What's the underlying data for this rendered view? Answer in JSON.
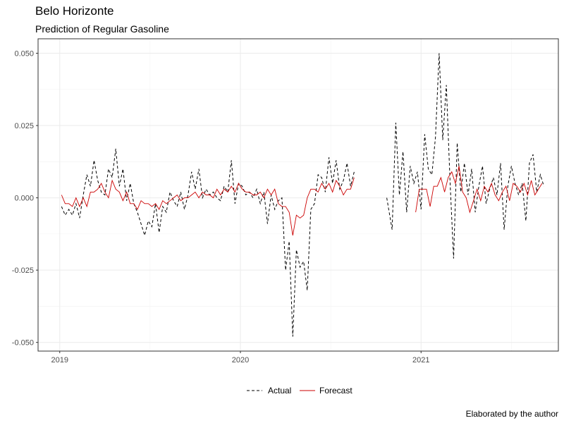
{
  "title": "Belo Horizonte",
  "subtitle": "Prediction of Regular Gasoline",
  "caption": "Elaborated by the author",
  "chart_data": {
    "type": "line",
    "title": "Belo Horizonte",
    "subtitle": "Prediction of Regular Gasoline",
    "xlabel": "",
    "ylabel": "",
    "x_range": [
      "2018-12-01",
      "2021-09-30"
    ],
    "xlim_decimal_year": [
      2018.88,
      2021.76
    ],
    "ylim": [
      -0.053,
      0.055
    ],
    "x_ticks": [
      {
        "value": 2019,
        "label": "2019"
      },
      {
        "value": 2020,
        "label": "2020"
      },
      {
        "value": 2021,
        "label": "2021"
      }
    ],
    "y_ticks": [
      {
        "value": -0.05,
        "label": "-0.050"
      },
      {
        "value": -0.025,
        "label": "-0.025"
      },
      {
        "value": 0.0,
        "label": "0.000"
      },
      {
        "value": 0.025,
        "label": "0.025"
      },
      {
        "value": 0.05,
        "label": "0.050"
      }
    ],
    "grid": true,
    "legend_position": "bottom",
    "series": [
      {
        "name": "Actual",
        "color": "#000000",
        "dash": "dashed",
        "segments": [
          {
            "x": [
              2019.01,
              2019.03,
              2019.05,
              2019.07,
              2019.09,
              2019.11,
              2019.13,
              2019.15,
              2019.17,
              2019.19,
              2019.21,
              2019.23,
              2019.25,
              2019.27,
              2019.29,
              2019.31,
              2019.33,
              2019.35,
              2019.37,
              2019.39,
              2019.41,
              2019.43,
              2019.45,
              2019.47,
              2019.49,
              2019.51,
              2019.53,
              2019.55,
              2019.57,
              2019.59,
              2019.61,
              2019.63,
              2019.65,
              2019.67,
              2019.69,
              2019.71,
              2019.73,
              2019.75,
              2019.77,
              2019.79,
              2019.81,
              2019.83,
              2019.85,
              2019.87,
              2019.89,
              2019.91,
              2019.93,
              2019.95,
              2019.97,
              2019.99,
              2020.01,
              2020.03,
              2020.05,
              2020.07,
              2020.09,
              2020.11,
              2020.13,
              2020.15,
              2020.17,
              2020.19,
              2020.21,
              2020.23,
              2020.25,
              2020.27,
              2020.29,
              2020.31,
              2020.33,
              2020.35,
              2020.37,
              2020.39,
              2020.41,
              2020.43,
              2020.45,
              2020.47,
              2020.49,
              2020.51,
              2020.53,
              2020.55,
              2020.57,
              2020.59,
              2020.61,
              2020.63
            ],
            "y": [
              -0.003,
              -0.006,
              -0.004,
              -0.006,
              -0.002,
              -0.007,
              0.001,
              0.008,
              0.004,
              0.013,
              0.006,
              0.002,
              0.001,
              0.01,
              0.007,
              0.017,
              0.004,
              0.01,
              -0.001,
              0.005,
              -0.002,
              -0.005,
              -0.009,
              -0.013,
              -0.008,
              -0.01,
              -0.002,
              -0.012,
              -0.003,
              -0.005,
              0.002,
              -0.001,
              -0.003,
              0.002,
              -0.004,
              0.001,
              0.009,
              0.003,
              0.01,
              0.0,
              0.003,
              0.001,
              0.002,
              0.0,
              -0.001,
              0.004,
              0.002,
              0.013,
              -0.002,
              0.005,
              0.004,
              0.001,
              0.002,
              0.0,
              0.003,
              -0.002,
              0.002,
              -0.009,
              0.001,
              -0.004,
              -0.001,
              0.0,
              -0.025,
              -0.015,
              -0.048,
              -0.018,
              -0.024,
              -0.022,
              -0.032,
              -0.004,
              -0.002,
              0.008,
              0.007,
              0.002,
              0.014,
              0.005,
              0.013,
              0.003,
              0.006,
              0.012,
              0.004,
              0.009
            ]
          },
          {
            "x": [
              2020.81,
              2020.84,
              2020.86,
              2020.88,
              2020.9,
              2020.92,
              2020.94,
              2020.96,
              2020.98,
              2021.0,
              2021.02,
              2021.04,
              2021.06,
              2021.08,
              2021.1,
              2021.12,
              2021.14,
              2021.16,
              2021.18,
              2021.2,
              2021.22,
              2021.24,
              2021.26,
              2021.28,
              2021.3,
              2021.32,
              2021.34,
              2021.36,
              2021.38,
              2021.4,
              2021.42,
              2021.44,
              2021.46,
              2021.48,
              2021.5,
              2021.52,
              2021.54,
              2021.56,
              2021.58,
              2021.6,
              2021.62,
              2021.64,
              2021.66,
              2021.68
            ],
            "y": [
              0.0,
              -0.011,
              0.026,
              0.001,
              0.016,
              -0.005,
              0.011,
              0.005,
              0.009,
              -0.004,
              0.022,
              0.01,
              0.008,
              0.021,
              0.05,
              0.02,
              0.039,
              0.006,
              -0.021,
              0.019,
              0.002,
              0.012,
              0.001,
              0.01,
              -0.005,
              0.004,
              0.011,
              -0.002,
              0.003,
              0.007,
              0.001,
              0.012,
              -0.011,
              0.004,
              0.011,
              0.005,
              0.001,
              0.005,
              -0.008,
              0.012,
              0.015,
              0.002,
              0.008,
              0.004
            ]
          }
        ]
      },
      {
        "name": "Forecast",
        "color": "#cc0000",
        "dash": "solid",
        "segments": [
          {
            "x": [
              2019.01,
              2019.03,
              2019.05,
              2019.07,
              2019.09,
              2019.11,
              2019.13,
              2019.15,
              2019.17,
              2019.19,
              2019.21,
              2019.23,
              2019.25,
              2019.27,
              2019.29,
              2019.31,
              2019.33,
              2019.35,
              2019.37,
              2019.39,
              2019.41,
              2019.43,
              2019.45,
              2019.47,
              2019.49,
              2019.51,
              2019.53,
              2019.55,
              2019.57,
              2019.59,
              2019.61,
              2019.63,
              2019.65,
              2019.67,
              2019.69,
              2019.71,
              2019.73,
              2019.75,
              2019.77,
              2019.79,
              2019.81,
              2019.83,
              2019.85,
              2019.87,
              2019.89,
              2019.91,
              2019.93,
              2019.95,
              2019.97,
              2019.99,
              2020.01,
              2020.03,
              2020.05,
              2020.07,
              2020.09,
              2020.11,
              2020.13,
              2020.15,
              2020.17,
              2020.19,
              2020.21,
              2020.23,
              2020.25,
              2020.27,
              2020.29,
              2020.31,
              2020.33,
              2020.35,
              2020.37,
              2020.39,
              2020.41,
              2020.43,
              2020.45,
              2020.47,
              2020.49,
              2020.51,
              2020.53,
              2020.55,
              2020.57,
              2020.59,
              2020.61,
              2020.63
            ],
            "y": [
              0.001,
              -0.002,
              -0.002,
              -0.003,
              0.0,
              -0.003,
              0.0,
              -0.003,
              0.002,
              0.002,
              0.003,
              0.005,
              0.002,
              0.0,
              0.006,
              0.003,
              0.002,
              -0.001,
              0.002,
              -0.002,
              -0.002,
              -0.004,
              -0.001,
              -0.002,
              -0.002,
              -0.003,
              -0.002,
              -0.004,
              -0.001,
              -0.002,
              -0.001,
              0.0,
              0.001,
              -0.001,
              0.0,
              0.0,
              0.001,
              0.002,
              0.0,
              0.002,
              0.001,
              0.001,
              0.0,
              0.003,
              0.001,
              0.003,
              0.002,
              0.004,
              0.002,
              0.005,
              0.003,
              0.002,
              0.002,
              0.001,
              0.001,
              0.002,
              0.0,
              0.003,
              0.001,
              0.003,
              -0.002,
              -0.003,
              -0.003,
              -0.005,
              -0.013,
              -0.006,
              -0.007,
              -0.006,
              0.0,
              0.003,
              0.003,
              0.002,
              0.005,
              0.003,
              0.005,
              0.002,
              0.006,
              0.004,
              0.001,
              0.003,
              0.003,
              0.007
            ]
          },
          {
            "x": [
              2020.97,
              2020.99,
              2021.01,
              2021.03,
              2021.05,
              2021.07,
              2021.09,
              2021.11,
              2021.13,
              2021.15,
              2021.17,
              2021.19,
              2021.21,
              2021.23,
              2021.25,
              2021.27,
              2021.29,
              2021.31,
              2021.33,
              2021.35,
              2021.37,
              2021.39,
              2021.41,
              2021.43,
              2021.45,
              2021.47,
              2021.49,
              2021.51,
              2021.53,
              2021.55,
              2021.57,
              2021.59,
              2021.61,
              2021.63,
              2021.65,
              2021.67
            ],
            "y": [
              -0.005,
              0.003,
              0.003,
              0.003,
              -0.003,
              0.004,
              0.004,
              0.007,
              0.002,
              0.007,
              0.009,
              0.005,
              0.011,
              0.002,
              0.0,
              -0.005,
              -0.001,
              0.003,
              -0.001,
              0.004,
              0.002,
              0.005,
              0.001,
              -0.001,
              0.002,
              0.004,
              -0.001,
              0.005,
              0.004,
              0.002,
              0.005,
              0.001,
              0.006,
              0.001,
              0.003,
              0.005
            ]
          }
        ]
      }
    ]
  }
}
